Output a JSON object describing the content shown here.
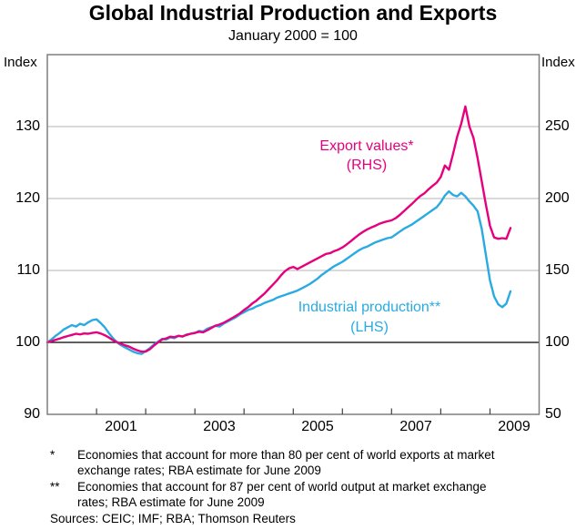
{
  "chart_data": {
    "type": "line",
    "title": "Global Industrial Production and Exports",
    "subtitle": "January 2000 = 100",
    "x_meta": {
      "start_year": 2000,
      "start_month": 1,
      "frequency": "monthly",
      "last_point": "June 2009"
    },
    "axes": {
      "left": {
        "unit_label": "Index",
        "ticks": [
          130,
          120,
          110,
          100,
          90
        ],
        "range": [
          90,
          140
        ],
        "gridline_values": [
          130,
          120,
          110
        ],
        "reference_value": 100
      },
      "right": {
        "unit_label": "Index",
        "ticks": [
          250,
          200,
          150,
          100,
          50
        ],
        "range": [
          50,
          300
        ]
      },
      "x": {
        "range": [
          2000,
          2010
        ],
        "tick_years": [
          2001,
          2002,
          2003,
          2004,
          2005,
          2006,
          2007,
          2008,
          2009
        ],
        "label_years": [
          2001,
          2003,
          2005,
          2007,
          2009
        ]
      }
    },
    "grid": "horizontal-only",
    "legend_position": "inline-annotations",
    "series": [
      {
        "name": "Export values*",
        "axis_note": "(RHS)",
        "axis": "right",
        "color": "#E6007E",
        "values": [
          100.0,
          100.8,
          101.8,
          102.6,
          103.6,
          104.4,
          105.2,
          106.0,
          105.6,
          106.2,
          106.0,
          106.6,
          107.0,
          106.2,
          105.0,
          103.4,
          101.6,
          100.2,
          99.0,
          98.0,
          97.0,
          95.6,
          94.4,
          93.6,
          93.6,
          95.2,
          97.8,
          100.0,
          102.0,
          102.8,
          104.0,
          103.6,
          104.6,
          104.2,
          105.2,
          106.0,
          106.6,
          107.4,
          107.0,
          108.4,
          110.0,
          111.6,
          112.4,
          113.6,
          115.2,
          116.8,
          118.4,
          120.2,
          122.5,
          124.5,
          127.0,
          129.0,
          131.5,
          134.0,
          137.0,
          140.0,
          143.0,
          146.5,
          149.5,
          151.5,
          152.5,
          151.0,
          152.5,
          154.0,
          155.5,
          157.0,
          158.5,
          160.0,
          161.5,
          162.0,
          163.5,
          164.5,
          166.0,
          168.0,
          170.2,
          172.6,
          174.8,
          176.8,
          178.4,
          179.8,
          181.0,
          182.4,
          183.4,
          184.2,
          184.8,
          186.4,
          188.6,
          191.2,
          193.8,
          196.4,
          199.2,
          201.8,
          203.6,
          206.4,
          208.8,
          211.0,
          215.0,
          223.0,
          220.0,
          231.0,
          243.0,
          252.0,
          264.0,
          250.0,
          242.0,
          228.0,
          212.0,
          196.0,
          181.0,
          173.0,
          172.0,
          172.5,
          172.0,
          179.5
        ]
      },
      {
        "name": "Industrial production**",
        "axis_note": "(LHS)",
        "axis": "left",
        "color": "#29ABE2",
        "values": [
          100.0,
          100.4,
          100.9,
          101.3,
          101.8,
          102.1,
          102.4,
          102.2,
          102.6,
          102.4,
          102.8,
          103.1,
          103.2,
          102.7,
          102.1,
          101.3,
          100.6,
          100.0,
          99.6,
          99.3,
          99.0,
          98.7,
          98.5,
          98.4,
          98.8,
          99.2,
          99.7,
          100.1,
          100.5,
          100.4,
          100.7,
          100.6,
          100.9,
          100.8,
          101.1,
          101.2,
          101.3,
          101.6,
          101.5,
          101.9,
          102.1,
          102.3,
          102.2,
          102.6,
          102.9,
          103.2,
          103.5,
          103.9,
          104.2,
          104.5,
          104.7,
          105.0,
          105.2,
          105.5,
          105.7,
          105.9,
          106.2,
          106.4,
          106.6,
          106.8,
          107.0,
          107.2,
          107.5,
          107.8,
          108.1,
          108.5,
          108.9,
          109.4,
          109.8,
          110.2,
          110.6,
          110.9,
          111.2,
          111.6,
          112.0,
          112.4,
          112.8,
          113.1,
          113.3,
          113.6,
          113.9,
          114.1,
          114.3,
          114.5,
          114.6,
          115.0,
          115.4,
          115.8,
          116.1,
          116.4,
          116.8,
          117.2,
          117.6,
          118.0,
          118.4,
          118.8,
          119.5,
          120.4,
          121.0,
          120.5,
          120.3,
          120.8,
          120.3,
          119.6,
          119.0,
          118.2,
          115.8,
          112.2,
          108.6,
          106.4,
          105.3,
          104.9,
          105.4,
          107.1
        ]
      }
    ],
    "style_colors": {
      "frame": "#7f7f7f",
      "gridline": "#b5b5b5",
      "reference_line": "#000000",
      "tick": "#404040"
    }
  },
  "footnotes": [
    {
      "marker": "*",
      "text": "Economies that account for more than 80 per cent of world exports at market exchange rates; RBA estimate for June 2009"
    },
    {
      "marker": "**",
      "text": "Economies that account for 87 per cent of world output at market exchange rates; RBA estimate for June 2009"
    }
  ],
  "sources": "Sources: CEIC; IMF; RBA; Thomson Reuters"
}
